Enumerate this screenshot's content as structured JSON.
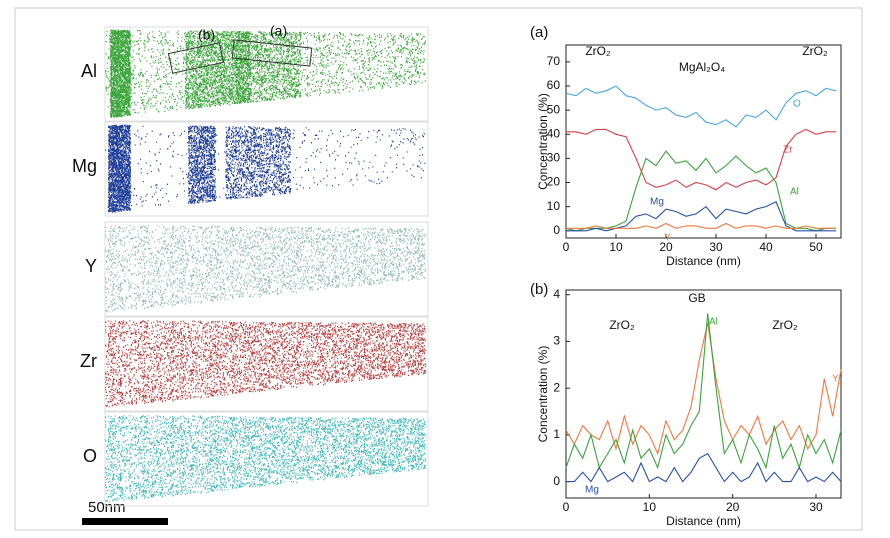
{
  "maps": {
    "elements": [
      "Al",
      "Mg",
      "Y",
      "Zr",
      "O"
    ],
    "boxes": [
      "(b)",
      "(a)"
    ],
    "scale_bar": "50nm"
  },
  "chart_data": [
    {
      "type": "line",
      "label": "(a)",
      "x_label": "Distance (nm)",
      "y_label": "Concentration (%)",
      "annotations": [
        "ZrO₂",
        "MgAl₂O₄",
        "ZrO₂"
      ],
      "x": [
        0,
        2,
        4,
        6,
        8,
        10,
        12,
        14,
        16,
        18,
        20,
        22,
        24,
        26,
        28,
        30,
        32,
        34,
        36,
        38,
        40,
        42,
        44,
        46,
        48,
        50,
        52,
        54
      ],
      "xlim": [
        0,
        55
      ],
      "xticks": [
        0,
        10,
        20,
        30,
        40,
        50
      ],
      "ylim": [
        -3,
        77
      ],
      "yticks": [
        0,
        10,
        20,
        30,
        40,
        50,
        60,
        70
      ],
      "series": [
        {
          "name": "O",
          "color": "#4aa8dc",
          "values": [
            57,
            56,
            59,
            57,
            58,
            60,
            56,
            55,
            52,
            50,
            51,
            48,
            47,
            49,
            45,
            44,
            46,
            43,
            48,
            47,
            50,
            46,
            53,
            57,
            58,
            56,
            59,
            58
          ]
        },
        {
          "name": "Zr",
          "color": "#d9404a",
          "values": [
            41,
            41,
            40,
            42,
            42,
            40,
            39,
            30,
            20,
            18,
            19,
            21,
            18,
            20,
            19,
            17,
            20,
            18,
            20,
            21,
            19,
            22,
            35,
            40,
            42,
            40,
            41,
            41
          ]
        },
        {
          "name": "Al",
          "color": "#3aa53a",
          "values": [
            1,
            0,
            1,
            1,
            1,
            2,
            4,
            18,
            30,
            27,
            33,
            28,
            29,
            25,
            30,
            24,
            27,
            31,
            27,
            24,
            26,
            20,
            3,
            1,
            1,
            0,
            1,
            1
          ]
        },
        {
          "name": "Mg",
          "color": "#2850a8",
          "values": [
            0,
            0,
            0,
            1,
            0,
            1,
            2,
            6,
            7,
            5,
            9,
            8,
            6,
            7,
            10,
            5,
            9,
            8,
            7,
            9,
            10,
            12,
            2,
            0,
            0,
            0,
            0,
            0
          ]
        },
        {
          "name": "Y",
          "color": "#f07840",
          "values": [
            1,
            1,
            1,
            2,
            1,
            1,
            1,
            1,
            2,
            1,
            3,
            1,
            2,
            2,
            1,
            1,
            3,
            1,
            2,
            2,
            1,
            2,
            1,
            1,
            2,
            1,
            1,
            1
          ]
        }
      ]
    },
    {
      "type": "line",
      "label": "(b)",
      "x_label": "Distance (nm)",
      "y_label": "Concentration (%)",
      "annotations": [
        "GB",
        "ZrO₂",
        "ZrO₂"
      ],
      "x": [
        0,
        1,
        2,
        3,
        4,
        5,
        6,
        7,
        8,
        9,
        10,
        11,
        12,
        13,
        14,
        15,
        16,
        17,
        18,
        19,
        20,
        21,
        22,
        23,
        24,
        25,
        26,
        27,
        28,
        29,
        30,
        31,
        32,
        33
      ],
      "xlim": [
        0,
        33
      ],
      "xticks": [
        0,
        10,
        20,
        30
      ],
      "ylim": [
        -0.35,
        4.1
      ],
      "yticks": [
        0,
        1,
        2,
        3,
        4
      ],
      "series": [
        {
          "name": "Y",
          "color": "#f07840",
          "values": [
            1.1,
            0.8,
            1.2,
            1.0,
            0.9,
            1.3,
            0.7,
            1.4,
            0.8,
            1.2,
            1.0,
            0.6,
            1.3,
            0.9,
            1.1,
            1.6,
            2.6,
            3.4,
            2.2,
            1.3,
            0.9,
            1.2,
            1.0,
            1.4,
            0.8,
            1.1,
            1.3,
            0.9,
            1.2,
            0.7,
            1.0,
            2.2,
            1.4,
            2.4
          ]
        },
        {
          "name": "Al",
          "color": "#3aa53a",
          "values": [
            0.3,
            0.8,
            0.5,
            1.0,
            0.3,
            0.6,
            0.9,
            0.4,
            1.1,
            0.5,
            0.7,
            0.3,
            1.0,
            0.6,
            0.8,
            1.2,
            1.5,
            3.6,
            2.0,
            0.6,
            0.9,
            0.4,
            1.0,
            0.7,
            0.3,
            1.2,
            0.5,
            0.8,
            0.3,
            1.0,
            0.6,
            0.9,
            0.4,
            1.1
          ]
        },
        {
          "name": "Mg",
          "color": "#2850a8",
          "values": [
            0,
            0,
            0.2,
            0,
            0.3,
            0,
            0.1,
            0.2,
            0,
            0.4,
            0,
            0.1,
            0,
            0.3,
            0,
            0.2,
            0.5,
            0.6,
            0.3,
            0,
            0.2,
            0,
            0.1,
            0.4,
            0,
            0.2,
            0,
            0,
            0.3,
            0,
            0.1,
            0,
            0.2,
            0
          ]
        }
      ]
    }
  ]
}
